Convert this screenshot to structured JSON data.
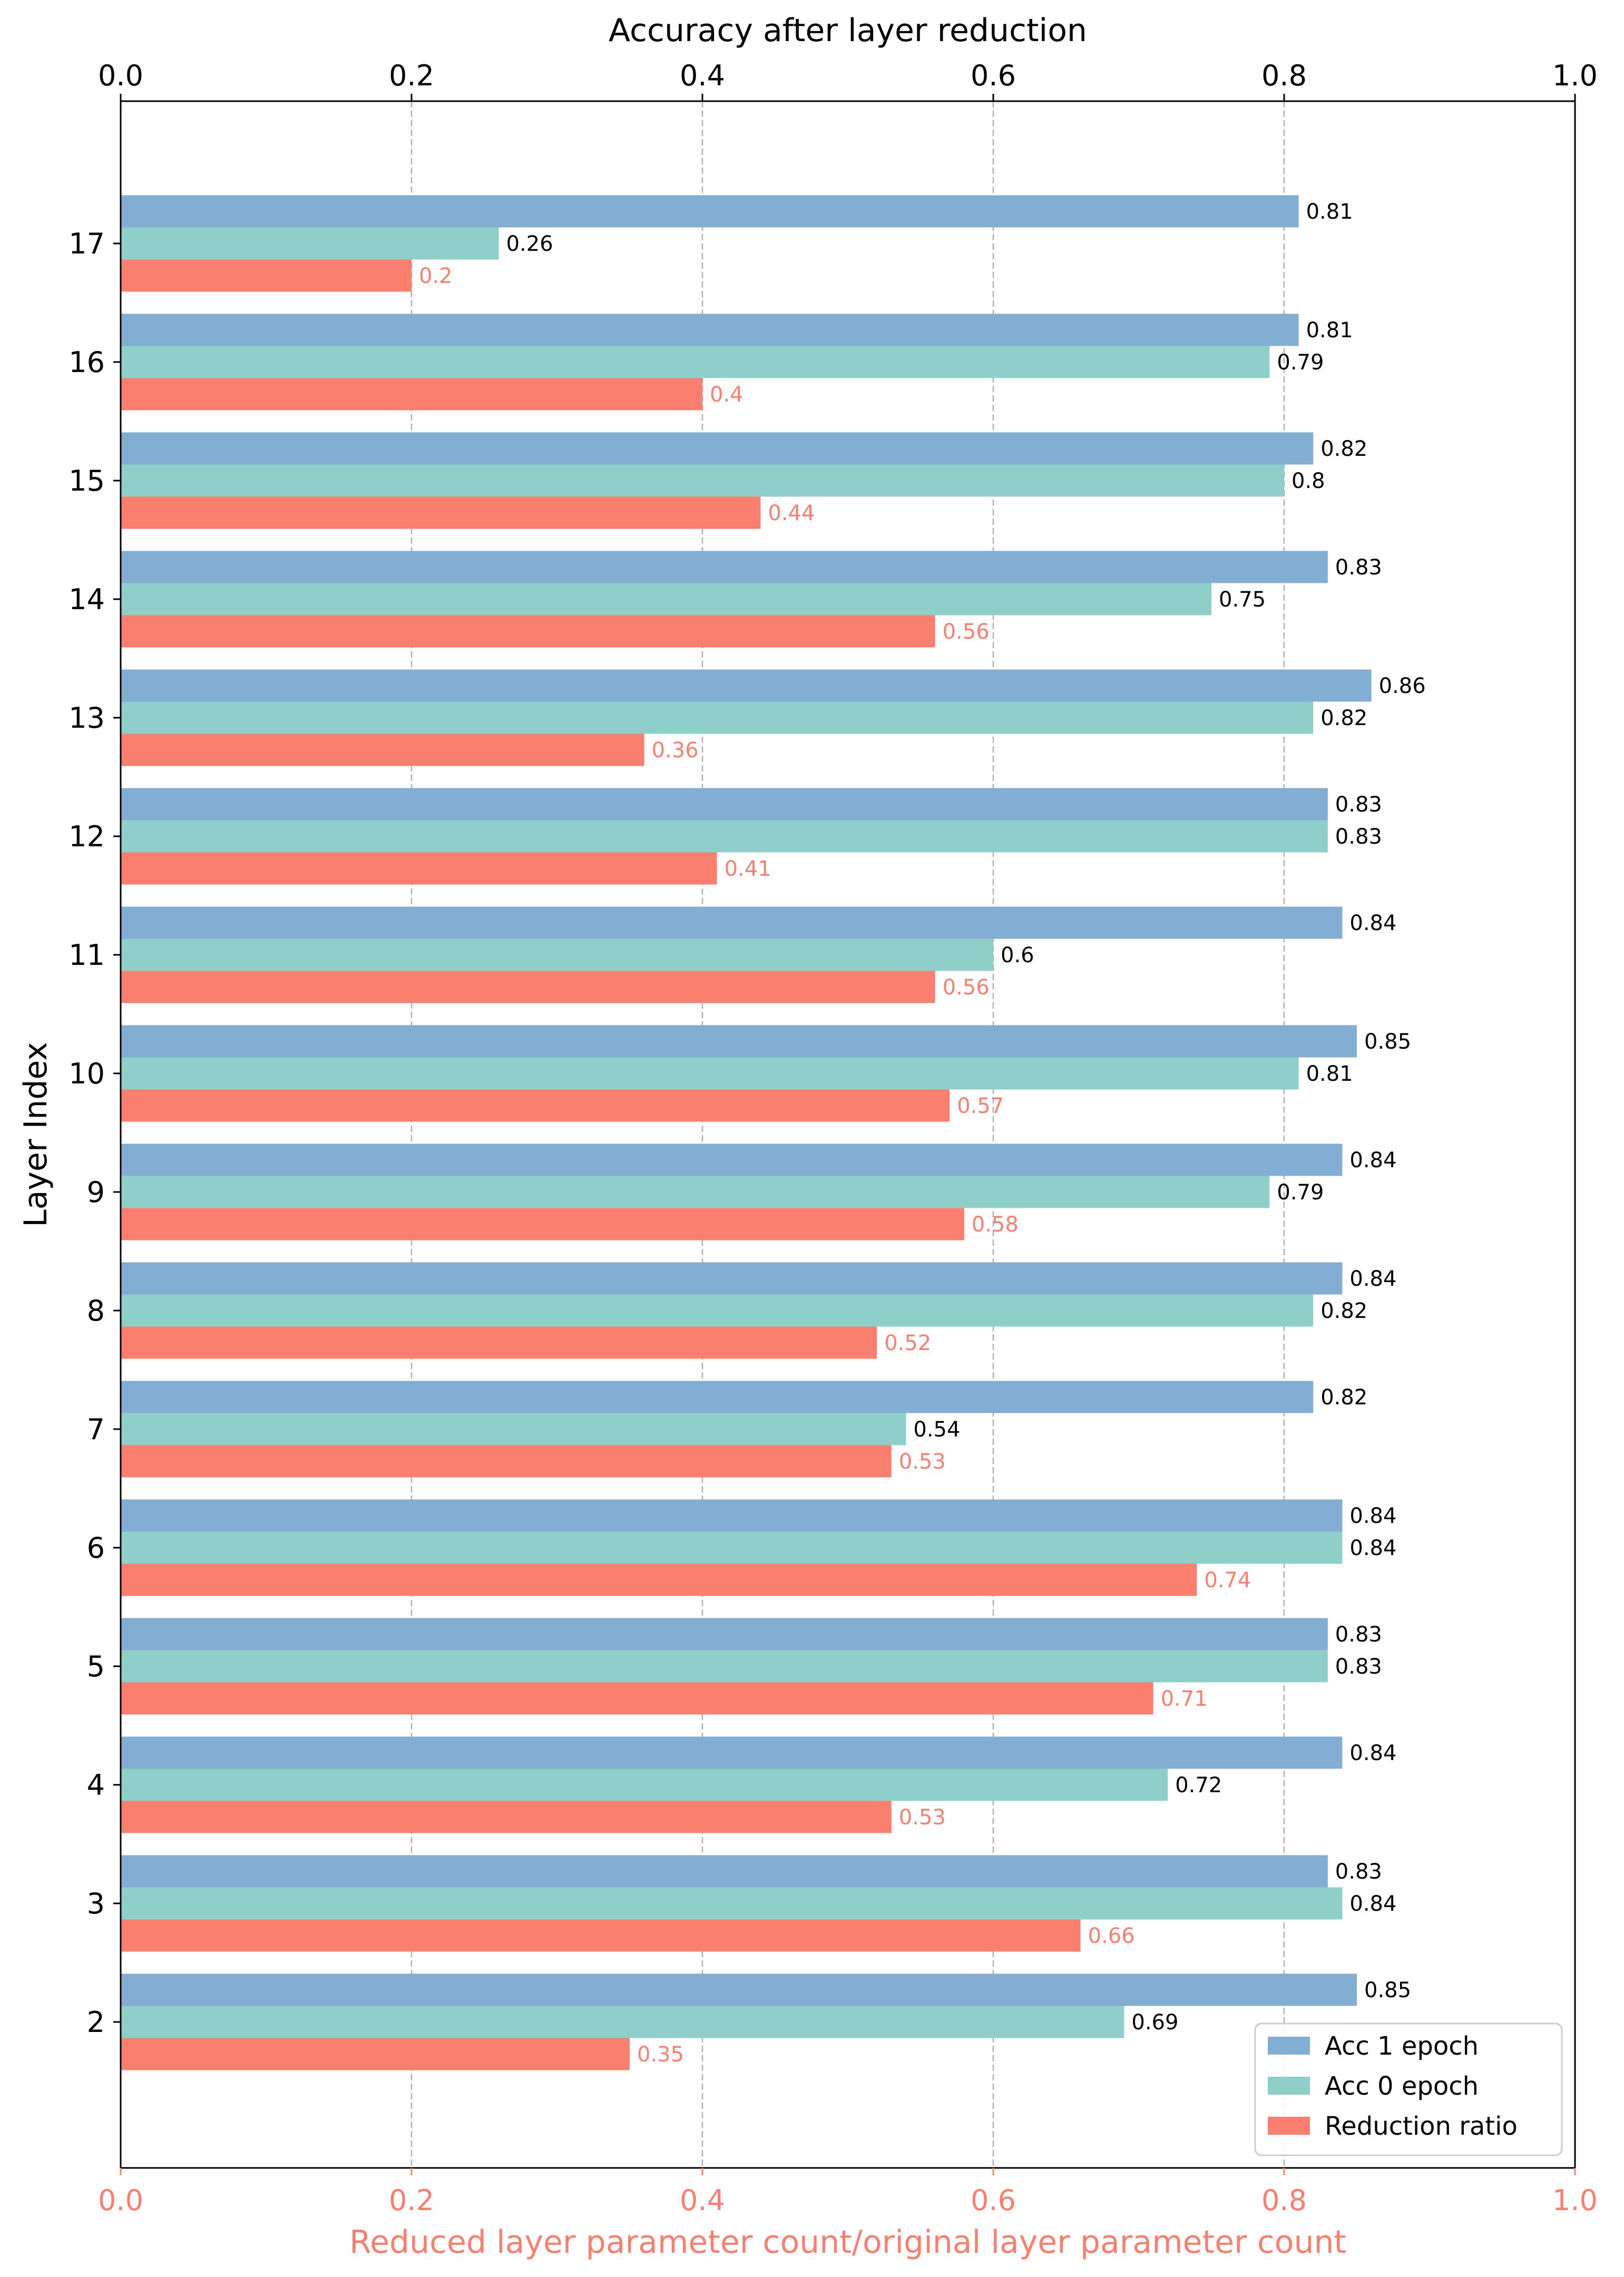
{
  "chart_data": {
    "type": "bar",
    "orientation": "horizontal",
    "top_axis": {
      "label": "Accuracy after layer reduction",
      "range": [
        0.0,
        1.0
      ]
    },
    "bottom_axis": {
      "label": "Reduced layer parameter count/original layer parameter count",
      "range": [
        0.0,
        1.0
      ]
    },
    "ylabel": "Layer Index",
    "xticks": [
      "0.0",
      "0.2",
      "0.4",
      "0.6",
      "0.8",
      "1.0"
    ],
    "xtick_values": [
      0.0,
      0.2,
      0.4,
      0.6,
      0.8,
      1.0
    ],
    "categories": [
      "2",
      "3",
      "4",
      "5",
      "6",
      "7",
      "8",
      "9",
      "10",
      "11",
      "12",
      "13",
      "14",
      "15",
      "16",
      "17"
    ],
    "series": [
      {
        "name": "Acc 1 epoch",
        "color": "#82aed3",
        "label_color": "#000000",
        "values": [
          0.85,
          0.83,
          0.84,
          0.83,
          0.84,
          0.82,
          0.84,
          0.84,
          0.85,
          0.84,
          0.83,
          0.86,
          0.83,
          0.82,
          0.81,
          0.81
        ],
        "labels": [
          "0.85",
          "0.83",
          "0.84",
          "0.83",
          "0.84",
          "0.82",
          "0.84",
          "0.84",
          "0.85",
          "0.84",
          "0.83",
          "0.86",
          "0.83",
          "0.82",
          "0.81",
          "0.81"
        ]
      },
      {
        "name": "Acc 0 epoch",
        "color": "#8ecfc9",
        "label_color": "#000000",
        "values": [
          0.69,
          0.84,
          0.72,
          0.83,
          0.84,
          0.54,
          0.82,
          0.79,
          0.81,
          0.6,
          0.83,
          0.82,
          0.75,
          0.8,
          0.79,
          0.26
        ],
        "labels": [
          "0.69",
          "0.84",
          "0.72",
          "0.83",
          "0.84",
          "0.54",
          "0.82",
          "0.79",
          "0.81",
          "0.6",
          "0.83",
          "0.82",
          "0.75",
          "0.8",
          "0.79",
          "0.26"
        ]
      },
      {
        "name": "Reduction ratio",
        "color": "#fa7f6f",
        "label_color": "#fa7f6f",
        "values": [
          0.35,
          0.66,
          0.53,
          0.71,
          0.74,
          0.53,
          0.52,
          0.58,
          0.57,
          0.56,
          0.41,
          0.36,
          0.56,
          0.44,
          0.4,
          0.2
        ],
        "labels": [
          "0.35",
          "0.66",
          "0.53",
          "0.71",
          "0.74",
          "0.53",
          "0.52",
          "0.58",
          "0.57",
          "0.56",
          "0.41",
          "0.36",
          "0.56",
          "0.44",
          "0.4",
          "0.2"
        ]
      }
    ],
    "grid": "vertical dashed",
    "legend_position": "lower-right",
    "colors": {
      "accent_bottom": "#fa7f6f",
      "grid": "#b0b0b0",
      "axis": "#000000"
    }
  }
}
